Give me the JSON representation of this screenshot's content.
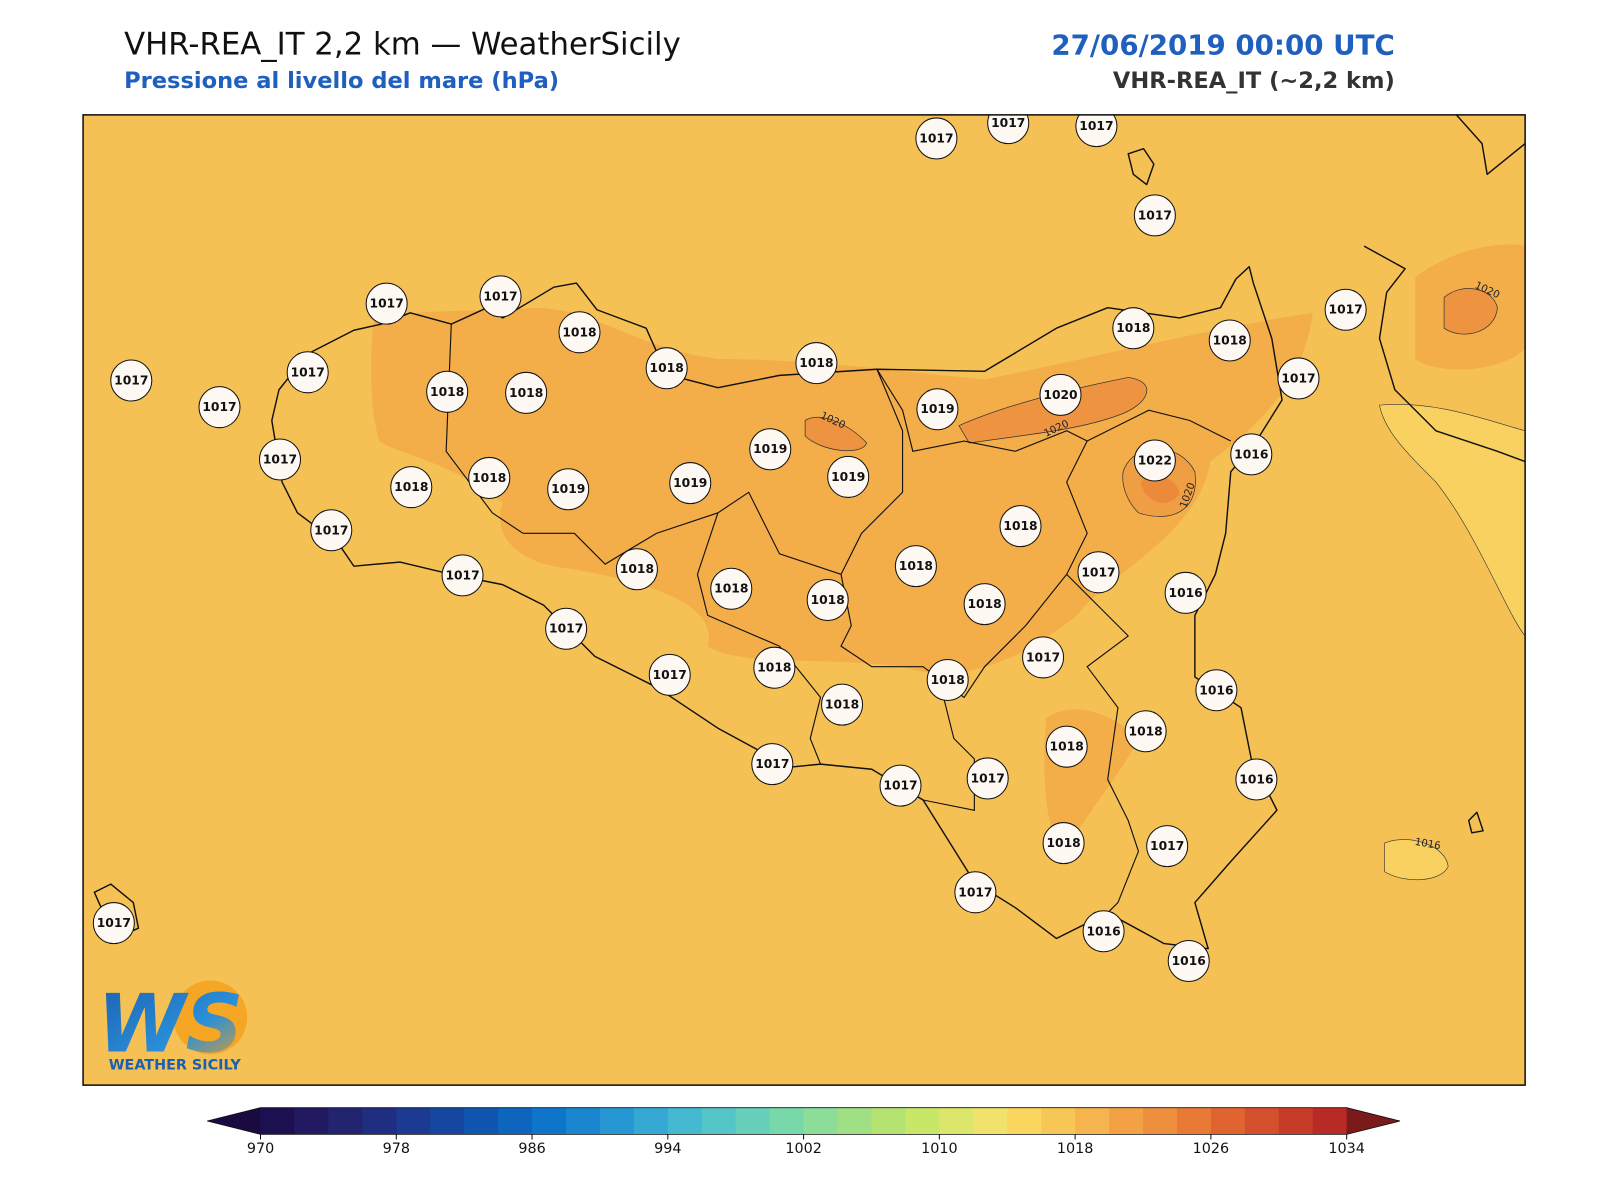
{
  "header": {
    "title": "VHR-REA_IT 2,2 km — WeatherSicily",
    "subtitle": "Pressione al livello del mare (hPa)",
    "datetime": "27/06/2019 00:00 UTC",
    "model": "VHR-REA_IT (~2,2 km)"
  },
  "stations": [
    1017,
    1017,
    1017,
    1017,
    1017,
    1017,
    1018,
    1018,
    1018,
    1018,
    1018,
    1017,
    1017,
    1017,
    1017,
    1018,
    1018,
    1017,
    1019,
    1020,
    1019,
    1022,
    1016,
    1017,
    1018,
    1018,
    1019,
    1019,
    1019,
    1017,
    1018,
    1017,
    1018,
    1018,
    1017,
    1018,
    1018,
    1018,
    1016,
    1017,
    1017,
    1017,
    1018,
    1018,
    1016,
    1018,
    1018,
    1018,
    1017,
    1017,
    1017,
    1016,
    1018,
    1017,
    1017,
    1016,
    1016,
    1017
  ],
  "contour_labels": [
    1020,
    1020,
    1020,
    1020,
    1016
  ],
  "logo": {
    "mark": "WS",
    "name": "WEATHER SICILY"
  },
  "colorbar": {
    "lim": [
      970,
      1034
    ],
    "ticks": [
      970,
      978,
      986,
      994,
      1002,
      1010,
      1018,
      1026,
      1034
    ],
    "colors": [
      "#1d1050",
      "#221a60",
      "#222470",
      "#1f2e80",
      "#1b3a90",
      "#1547a0",
      "#1055b0",
      "#0d65bd",
      "#0f75c8",
      "#1a86cf",
      "#2797d3",
      "#35a8d4",
      "#45b8d2",
      "#55c6c8",
      "#66d0ba",
      "#78d8aa",
      "#8cdd98",
      "#a0e084",
      "#b4e371",
      "#c8e668",
      "#dce66a",
      "#f0e26a",
      "#fad65e",
      "#f7c756",
      "#f5b44d",
      "#f2a244",
      "#ee8f3d",
      "#e97a36",
      "#e06430",
      "#d44f2b",
      "#c73c28",
      "#b82a26"
    ],
    "under_color": "#1a0a40",
    "over_color": "#7a1a1a"
  }
}
